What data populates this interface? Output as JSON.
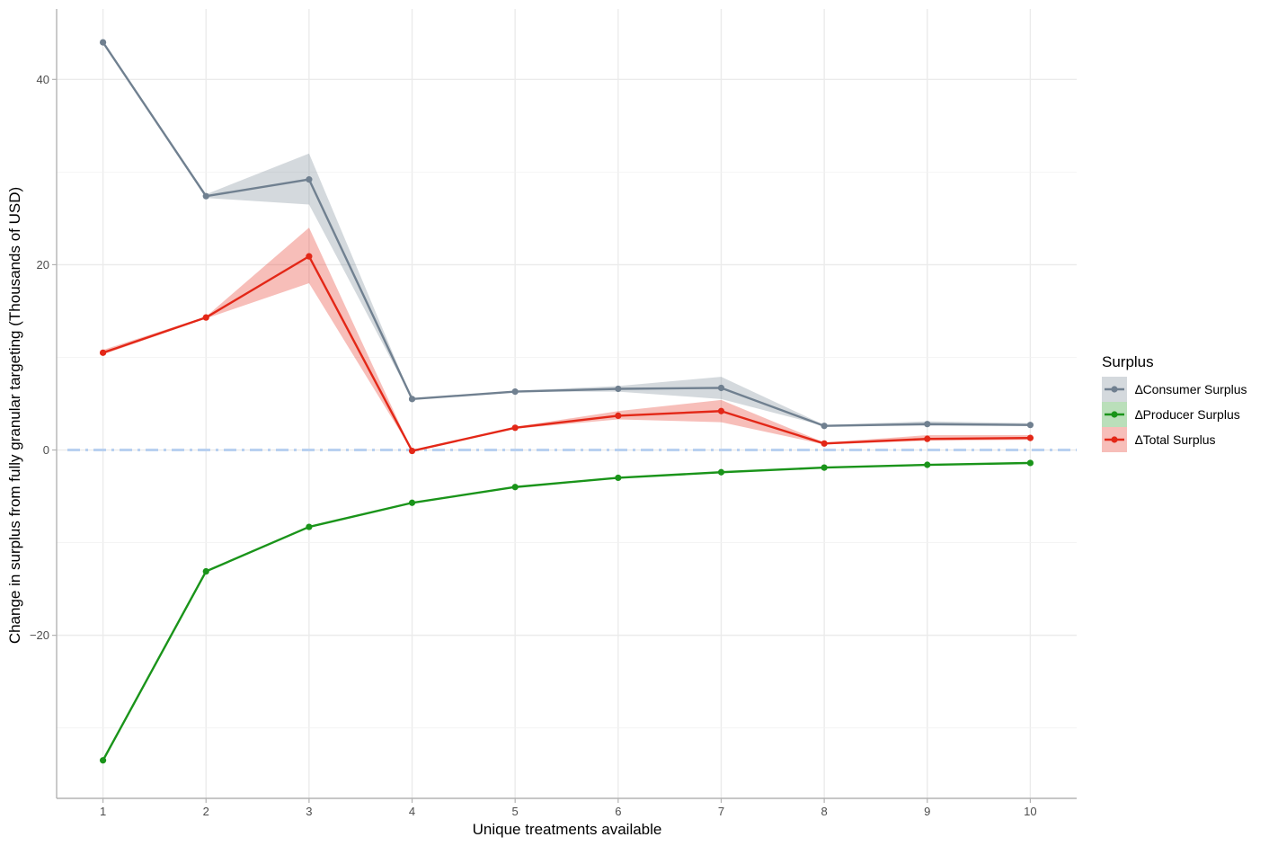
{
  "chart_data": {
    "type": "line",
    "xlabel": "Unique treatments available",
    "ylabel": "Change in surplus from fully granular targeting (Thousands of USD)",
    "x": [
      1,
      2,
      3,
      4,
      5,
      6,
      7,
      8,
      9,
      10
    ],
    "xticks": [
      1,
      2,
      3,
      4,
      5,
      6,
      7,
      8,
      9,
      10
    ],
    "yticks": [
      -20,
      0,
      20,
      40
    ],
    "ylim": [
      -37.6,
      47.6
    ],
    "xlim": [
      0.55,
      10.45
    ],
    "grid": true,
    "legend_position": "right",
    "legend_title": "Surplus",
    "reference_line": {
      "y": 0,
      "color": "#b8d0f0",
      "style": "dash-dot"
    },
    "series": [
      {
        "name": "∆Consumer Surplus",
        "color": "#708090",
        "values": [
          44.0,
          27.4,
          29.2,
          5.5,
          6.3,
          6.6,
          6.7,
          2.6,
          2.8,
          2.7
        ],
        "lower": [
          44.0,
          27.2,
          26.5,
          5.5,
          6.3,
          6.3,
          5.5,
          2.6,
          2.6,
          2.6
        ],
        "upper": [
          44.0,
          27.6,
          32.0,
          5.5,
          6.4,
          6.9,
          7.9,
          2.7,
          3.1,
          2.9
        ]
      },
      {
        "name": "∆Producer Surplus",
        "color": "#1a941a",
        "values": [
          -33.5,
          -13.1,
          -8.3,
          -5.7,
          -4.0,
          -3.0,
          -2.4,
          -1.9,
          -1.6,
          -1.4
        ],
        "lower": [
          -33.5,
          -13.1,
          -8.3,
          -5.7,
          -4.0,
          -3.0,
          -2.4,
          -1.9,
          -1.6,
          -1.4
        ],
        "upper": [
          -33.5,
          -13.1,
          -8.3,
          -5.7,
          -4.0,
          -3.0,
          -2.4,
          -1.9,
          -1.6,
          -1.4
        ]
      },
      {
        "name": "∆Total Surplus",
        "color": "#e32717",
        "values": [
          10.5,
          14.3,
          20.9,
          -0.1,
          2.4,
          3.7,
          4.2,
          0.7,
          1.2,
          1.3
        ],
        "lower": [
          10.3,
          14.2,
          18.0,
          -0.1,
          2.3,
          3.3,
          3.0,
          0.6,
          1.0,
          1.1
        ],
        "upper": [
          10.8,
          14.4,
          24.0,
          -0.1,
          2.5,
          4.2,
          5.4,
          0.8,
          1.6,
          1.6
        ]
      }
    ]
  }
}
